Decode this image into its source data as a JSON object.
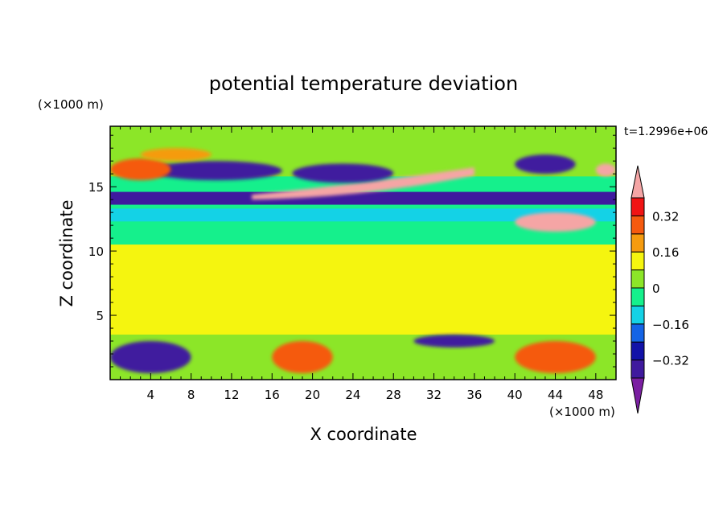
{
  "chart_data": {
    "type": "heatmap",
    "title": "potential temperature deviation",
    "xlabel": "X coordinate",
    "ylabel": "Z coordinate",
    "x_unit": "(×1000 m)",
    "y_unit": "(×1000 m)",
    "time_label": "t=1.2996e+06",
    "xlim": [
      0,
      50
    ],
    "ylim": [
      0,
      19.7
    ],
    "x_ticks": [
      "4",
      "8",
      "12",
      "16",
      "20",
      "24",
      "28",
      "32",
      "36",
      "40",
      "44",
      "48"
    ],
    "x_tick_values": [
      4,
      8,
      12,
      16,
      20,
      24,
      28,
      32,
      36,
      40,
      44,
      48
    ],
    "y_ticks": [
      "5",
      "10",
      "15"
    ],
    "y_tick_values": [
      5,
      10,
      15
    ],
    "colorbar": {
      "labels": [
        "0.32",
        "0.16",
        "0",
        "−0.16",
        "−0.32"
      ],
      "label_values": [
        0.32,
        0.16,
        0,
        -0.16,
        -0.32
      ],
      "levels": [
        -0.4,
        -0.32,
        -0.24,
        -0.16,
        -0.08,
        0,
        0.08,
        0.16,
        0.24,
        0.32,
        0.4
      ],
      "colors": [
        "#7b1fa2",
        "#3f1a9e",
        "#1212a8",
        "#1464e6",
        "#14d2e6",
        "#15f08c",
        "#8ce628",
        "#f5f50f",
        "#f59b0f",
        "#f55a0f",
        "#f01414",
        "#f5a5a5"
      ]
    },
    "field_features": [
      {
        "value": -0.06,
        "x": [
          0,
          50
        ],
        "z": [
          10.5,
          15.8
        ],
        "shape": "band"
      },
      {
        "value": 0.12,
        "x": [
          0,
          50
        ],
        "z": [
          3.5,
          10.5
        ],
        "shape": "band"
      },
      {
        "value": -0.14,
        "x": [
          0,
          50
        ],
        "z": [
          12.3,
          13.3
        ],
        "shape": "band"
      },
      {
        "value": -0.35,
        "x": [
          0,
          50
        ],
        "z": [
          13.6,
          14.6
        ],
        "shape": "band"
      },
      {
        "value": 0.42,
        "x": [
          14,
          36
        ],
        "z": [
          14.0,
          16.5
        ],
        "shape": "tilted_blob"
      },
      {
        "value": 0.42,
        "x": [
          40,
          48
        ],
        "z": [
          11.5,
          13.0
        ],
        "shape": "blob"
      },
      {
        "value": -0.33,
        "x": [
          4,
          17
        ],
        "z": [
          15.5,
          17.0
        ],
        "shape": "blob"
      },
      {
        "value": -0.33,
        "x": [
          18,
          28
        ],
        "z": [
          15.3,
          16.8
        ],
        "shape": "blob"
      },
      {
        "value": -0.33,
        "x": [
          40,
          46
        ],
        "z": [
          16.0,
          17.5
        ],
        "shape": "blob"
      },
      {
        "value": 0.3,
        "x": [
          0,
          6
        ],
        "z": [
          15.5,
          17.2
        ],
        "shape": "blob"
      },
      {
        "value": 0.42,
        "x": [
          48,
          50
        ],
        "z": [
          15.8,
          16.8
        ],
        "shape": "blob"
      },
      {
        "value": 0.16,
        "x": [
          3,
          10
        ],
        "z": [
          17.0,
          18.0
        ],
        "shape": "blob"
      },
      {
        "value": 0.3,
        "x": [
          16,
          22
        ],
        "z": [
          0.5,
          3.0
        ],
        "shape": "blob"
      },
      {
        "value": 0.3,
        "x": [
          40,
          48
        ],
        "z": [
          0.5,
          3.0
        ],
        "shape": "blob"
      },
      {
        "value": -0.33,
        "x": [
          0,
          8
        ],
        "z": [
          0.5,
          3.0
        ],
        "shape": "blob"
      },
      {
        "value": -0.33,
        "x": [
          30,
          38
        ],
        "z": [
          2.5,
          3.5
        ],
        "shape": "blob"
      }
    ]
  }
}
